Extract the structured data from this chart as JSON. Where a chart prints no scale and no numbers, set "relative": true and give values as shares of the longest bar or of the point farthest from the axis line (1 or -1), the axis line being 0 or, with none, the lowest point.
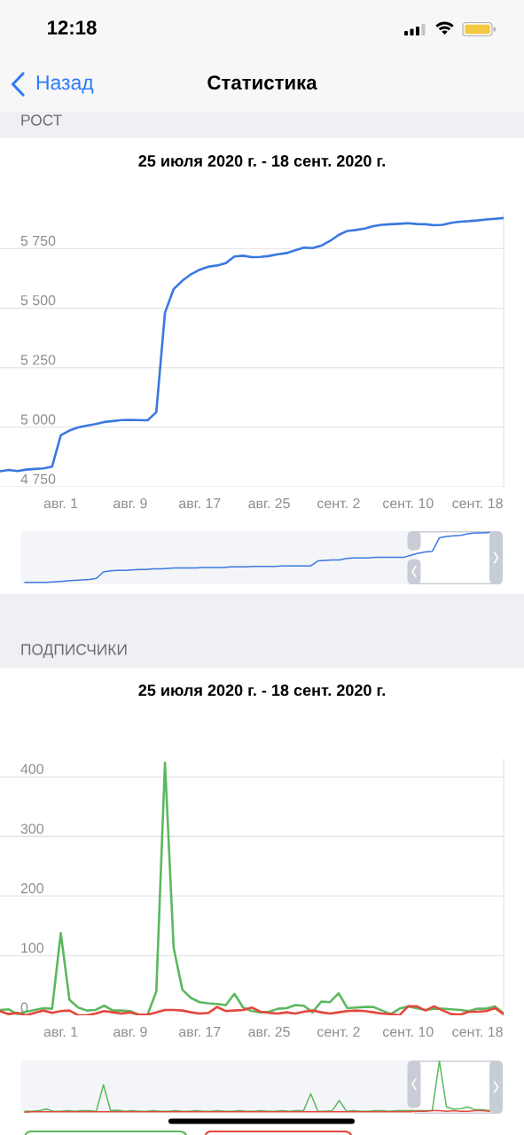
{
  "chart_data": [
    {
      "type": "line",
      "title": "РОСТ",
      "subtitle": "25 июля 2020 г. - 18 сент. 2020 г.",
      "annotations": [
        "12:18",
        "Назад",
        "Статистика"
      ],
      "x": [
        "2020-07-25",
        "2020-07-26",
        "2020-07-27",
        "2020-07-28",
        "2020-07-29",
        "2020-07-30",
        "2020-07-31",
        "2020-08-01",
        "2020-08-02",
        "2020-08-03",
        "2020-08-04",
        "2020-08-05",
        "2020-08-06",
        "2020-08-07",
        "2020-08-08",
        "2020-08-09",
        "2020-08-10",
        "2020-08-11",
        "2020-08-12",
        "2020-08-13",
        "2020-08-14",
        "2020-08-15",
        "2020-08-16",
        "2020-08-17",
        "2020-08-18",
        "2020-08-19",
        "2020-08-20",
        "2020-08-21",
        "2020-08-22",
        "2020-08-23",
        "2020-08-24",
        "2020-08-25",
        "2020-08-26",
        "2020-08-27",
        "2020-08-28",
        "2020-08-29",
        "2020-08-30",
        "2020-08-31",
        "2020-09-01",
        "2020-09-02",
        "2020-09-03",
        "2020-09-04",
        "2020-09-05",
        "2020-09-06",
        "2020-09-07",
        "2020-09-08",
        "2020-09-09",
        "2020-09-10",
        "2020-09-11",
        "2020-09-12",
        "2020-09-13",
        "2020-09-14",
        "2020-09-15",
        "2020-09-16",
        "2020-09-17",
        "2020-09-18",
        "2020-09-19",
        "2020-09-20",
        "2020-09-21"
      ],
      "series": [
        {
          "color": "#3a78e0",
          "values": [
            4815,
            4821,
            4816,
            4822,
            4825,
            4827,
            4835,
            4966,
            4986,
            4999,
            5007,
            5013,
            5022,
            5026,
            5030,
            5031,
            5030,
            5029,
            5063,
            5481,
            5580,
            5615,
            5642,
            5661,
            5674,
            5679,
            5689,
            5717,
            5720,
            5714,
            5715,
            5719,
            5726,
            5731,
            5743,
            5754,
            5752,
            5762,
            5782,
            5807,
            5824,
            5828,
            5834,
            5844,
            5850,
            5852,
            5854,
            5856,
            5853,
            5852,
            5848,
            5850,
            5858,
            5863,
            5865,
            5868,
            5872,
            5875,
            5878
          ]
        }
      ],
      "xlim": [
        "2020-07-25",
        "2020-09-21"
      ],
      "xticks": [
        {
          "value": "2020-08-01",
          "label": "авг. 1"
        },
        {
          "value": "2020-08-09",
          "label": "авг. 9"
        },
        {
          "value": "2020-08-17",
          "label": "авг. 17"
        },
        {
          "value": "2020-08-25",
          "label": "авг. 25"
        },
        {
          "value": "2020-09-02",
          "label": "сент. 2"
        },
        {
          "value": "2020-09-10",
          "label": "сент. 10"
        },
        {
          "value": "2020-09-18",
          "label": "сент. 18"
        }
      ],
      "ylim": [
        4750,
        5900
      ],
      "yticks": [
        {
          "value": 4750,
          "label": "4 750"
        },
        {
          "value": 5000,
          "label": "5 000"
        },
        {
          "value": 5250,
          "label": "5 250"
        },
        {
          "value": 5500,
          "label": "5 500"
        },
        {
          "value": 5750,
          "label": "5 750"
        }
      ],
      "grid": "y"
    },
    {
      "type": "line",
      "relative": true,
      "categories": [
        null,
        null,
        null,
        null,
        null,
        null,
        null,
        null,
        null,
        null,
        null,
        null,
        null,
        null,
        null,
        null,
        null,
        null,
        null,
        null,
        null,
        null,
        null,
        null,
        null,
        null,
        null,
        null,
        null,
        null,
        null,
        null,
        null,
        null,
        null,
        null,
        null,
        null,
        null,
        null,
        null,
        null,
        null,
        null,
        null,
        null,
        null,
        null,
        null,
        null,
        null,
        null,
        null,
        null,
        null,
        null,
        null,
        null,
        null,
        null,
        null,
        null,
        null,
        null,
        null,
        null
      ],
      "series": [
        {
          "color": "#3a78e0",
          "values": [
            0,
            0,
            0,
            0,
            0.01,
            0.02,
            0.03,
            0.04,
            0.05,
            0.06,
            0.08,
            0.21,
            0.23,
            0.24,
            0.24,
            0.25,
            0.26,
            0.26,
            0.27,
            0.27,
            0.28,
            0.29,
            0.29,
            0.29,
            0.29,
            0.3,
            0.3,
            0.3,
            0.3,
            0.31,
            0.31,
            0.31,
            0.32,
            0.32,
            0.32,
            0.32,
            0.33,
            0.33,
            0.33,
            0.33,
            0.33,
            0.43,
            0.44,
            0.45,
            0.45,
            0.48,
            0.49,
            0.49,
            0.49,
            0.5,
            0.5,
            0.5,
            0.5,
            0.5,
            0.54,
            0.58,
            0.61,
            0.62,
            0.89,
            0.92,
            0.93,
            0.94,
            0.97,
            0.99,
            0.99,
            1
          ]
        }
      ]
    },
    {
      "type": "line",
      "title": "ПОДПИСЧИКИ",
      "subtitle": "25 июля 2020 г. - 18 сент. 2020 г.",
      "x": [
        "2020-07-25",
        "2020-07-26",
        "2020-07-27",
        "2020-07-28",
        "2020-07-29",
        "2020-07-30",
        "2020-07-31",
        "2020-08-01",
        "2020-08-02",
        "2020-08-03",
        "2020-08-04",
        "2020-08-05",
        "2020-08-06",
        "2020-08-07",
        "2020-08-08",
        "2020-08-09",
        "2020-08-10",
        "2020-08-11",
        "2020-08-12",
        "2020-08-13",
        "2020-08-14",
        "2020-08-15",
        "2020-08-16",
        "2020-08-17",
        "2020-08-18",
        "2020-08-19",
        "2020-08-20",
        "2020-08-21",
        "2020-08-22",
        "2020-08-23",
        "2020-08-24",
        "2020-08-25",
        "2020-08-26",
        "2020-08-27",
        "2020-08-28",
        "2020-08-29",
        "2020-08-30",
        "2020-08-31",
        "2020-09-01",
        "2020-09-02",
        "2020-09-03",
        "2020-09-04",
        "2020-09-05",
        "2020-09-06",
        "2020-09-07",
        "2020-09-08",
        "2020-09-09",
        "2020-09-10",
        "2020-09-11",
        "2020-09-12",
        "2020-09-13",
        "2020-09-14",
        "2020-09-15",
        "2020-09-16",
        "2020-09-17",
        "2020-09-18",
        "2020-09-19",
        "2020-09-20",
        "2020-09-21"
      ],
      "series": [
        {
          "color": "#5cb85f",
          "values": [
            9,
            10,
            2,
            6,
            9,
            12,
            11,
            138,
            26,
            13,
            8,
            9,
            16,
            8,
            8,
            7,
            1,
            1,
            40,
            424,
            113,
            43,
            29,
            22,
            20,
            19,
            17,
            36,
            13,
            7,
            5,
            6,
            11,
            12,
            17,
            16,
            5,
            23,
            22,
            37,
            12,
            13,
            14,
            14,
            8,
            2,
            11,
            15,
            12,
            9,
            11,
            11,
            10,
            9,
            7,
            11,
            11,
            15,
            3
          ]
        },
        {
          "color": "#e2483d",
          "values": [
            7,
            2,
            4,
            0,
            4,
            8,
            4,
            7,
            8,
            0,
            0,
            3,
            7,
            5,
            3,
            5,
            1,
            1,
            5,
            9,
            9,
            8,
            5,
            3,
            4,
            14,
            7,
            8,
            9,
            13,
            6,
            4,
            3,
            5,
            3,
            6,
            8,
            5,
            3,
            5,
            7,
            8,
            7,
            5,
            3,
            2,
            0,
            15,
            15,
            8,
            15,
            8,
            2,
            1,
            6,
            6,
            7,
            12,
            2
          ]
        }
      ],
      "xlim": [
        "2020-07-25",
        "2020-09-21"
      ],
      "xticks": [
        {
          "value": "2020-08-01",
          "label": "авг. 1"
        },
        {
          "value": "2020-08-09",
          "label": "авг. 9"
        },
        {
          "value": "2020-08-17",
          "label": "авг. 17"
        },
        {
          "value": "2020-08-25",
          "label": "авг. 25"
        },
        {
          "value": "2020-09-02",
          "label": "сент. 2"
        },
        {
          "value": "2020-09-10",
          "label": "сент. 10"
        },
        {
          "value": "2020-09-18",
          "label": "сент. 18"
        }
      ],
      "ylim": [
        0,
        430
      ],
      "yticks": [
        0,
        100,
        200,
        300,
        400
      ],
      "grid": "y"
    },
    {
      "type": "line",
      "relative": true,
      "categories": [
        null,
        null,
        null,
        null,
        null,
        null,
        null,
        null,
        null,
        null,
        null,
        null,
        null,
        null,
        null,
        null,
        null,
        null,
        null,
        null,
        null,
        null,
        null,
        null,
        null,
        null,
        null,
        null,
        null,
        null,
        null,
        null,
        null,
        null,
        null,
        null,
        null,
        null,
        null,
        null,
        null,
        null,
        null,
        null,
        null,
        null,
        null,
        null,
        null,
        null,
        null,
        null,
        null,
        null,
        null,
        null,
        null,
        null,
        null,
        null,
        null,
        null,
        null,
        null,
        null,
        null
      ],
      "series": [
        {
          "color": "#5cb85f",
          "values": [
            0.02,
            0.02,
            0.03,
            0.06,
            0.02,
            0.02,
            0.03,
            0.02,
            0.03,
            0.03,
            0.02,
            0.54,
            0.03,
            0.04,
            0.02,
            0.03,
            0.02,
            0.02,
            0.03,
            0.02,
            0.02,
            0.03,
            0.02,
            0.02,
            0.03,
            0.02,
            0.02,
            0.03,
            0.02,
            0.02,
            0.03,
            0.02,
            0.02,
            0.03,
            0.02,
            0.02,
            0.03,
            0.02,
            0.03,
            0.03,
            0.36,
            0.02,
            0.02,
            0.03,
            0.23,
            0.02,
            0.03,
            0.02,
            0.02,
            0.03,
            0.03,
            0.02,
            0.03,
            0.03,
            0.03,
            0.03,
            0.03,
            0.03,
            1,
            0.1,
            0.06,
            0.07,
            0.1,
            0.05,
            0.05,
            0.03
          ]
        },
        {
          "color": "#e2483d",
          "values": [
            0,
            0.01,
            0.01,
            0.01,
            0.01,
            0.01,
            0.01,
            0.01,
            0.01,
            0.01,
            0.01,
            0.01,
            0.01,
            0.01,
            0.01,
            0.01,
            0.01,
            0.01,
            0.01,
            0.01,
            0.01,
            0.01,
            0.01,
            0.01,
            0.01,
            0.01,
            0.01,
            0.01,
            0.01,
            0.01,
            0.01,
            0.01,
            0.01,
            0.01,
            0.01,
            0.01,
            0.01,
            0.01,
            0.01,
            0.01,
            0.01,
            0.01,
            0.01,
            0.01,
            0.01,
            0.01,
            0.01,
            0.01,
            0.01,
            0.01,
            0.01,
            0.01,
            0.01,
            0.01,
            0.01,
            0.02,
            0.02,
            0.03,
            0.03,
            0.02,
            0.03,
            0.02,
            0.02,
            0.03,
            0.03,
            0.02
          ]
        }
      ]
    }
  ]
}
